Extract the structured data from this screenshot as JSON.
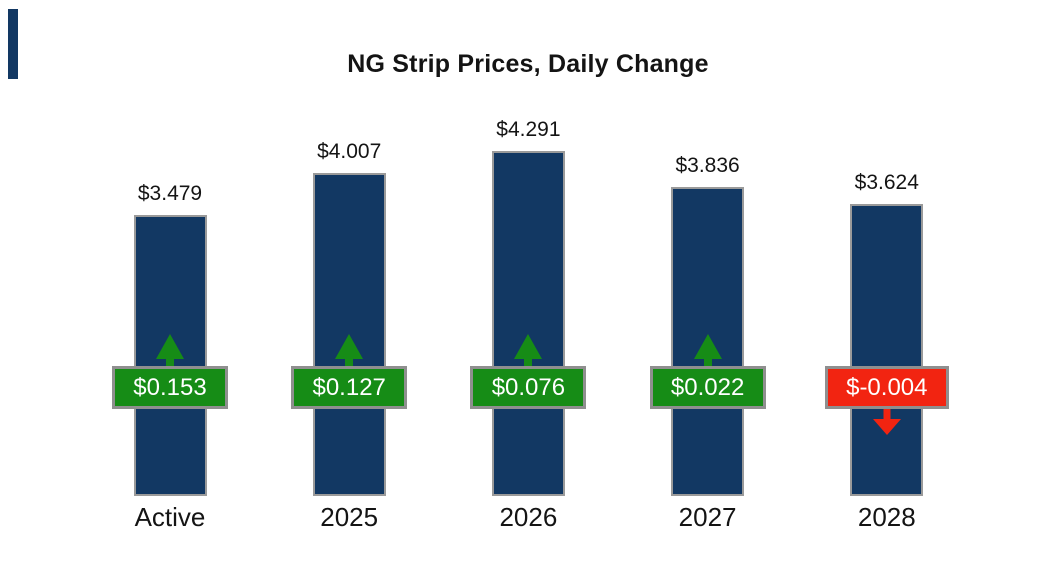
{
  "title": "NG Strip Prices, Daily Change",
  "colors": {
    "bar_fill": "#123863",
    "bar_border": "#9a9a9a",
    "positive": "#168c16",
    "negative": "#f22411",
    "badge_border": "#8f8f8f",
    "badge_text": "#ffffff",
    "label_text": "#141414"
  },
  "bars": [
    {
      "category": "Active",
      "value": 3.479,
      "value_label": "$3.479",
      "change": 0.153,
      "change_label": "$0.153",
      "direction": "up"
    },
    {
      "category": "2025",
      "value": 4.007,
      "value_label": "$4.007",
      "change": 0.127,
      "change_label": "$0.127",
      "direction": "up"
    },
    {
      "category": "2026",
      "value": 4.291,
      "value_label": "$4.291",
      "change": 0.076,
      "change_label": "$0.076",
      "direction": "up"
    },
    {
      "category": "2027",
      "value": 3.836,
      "value_label": "$3.836",
      "change": 0.022,
      "change_label": "$0.022",
      "direction": "up"
    },
    {
      "category": "2028",
      "value": 3.624,
      "value_label": "$3.624",
      "change": -0.004,
      "change_label": "$-0.004",
      "direction": "down"
    }
  ],
  "chart_data": {
    "type": "bar",
    "title": "NG Strip Prices, Daily Change",
    "categories": [
      "Active",
      "2025",
      "2026",
      "2027",
      "2028"
    ],
    "series": [
      {
        "name": "strip_price_usd",
        "values": [
          3.479,
          4.007,
          4.291,
          3.836,
          3.624
        ]
      },
      {
        "name": "daily_change_usd",
        "values": [
          0.153,
          0.127,
          0.076,
          0.022,
          -0.004
        ]
      }
    ],
    "xlabel": "",
    "ylabel": "",
    "ylim": [
      0,
      4.8
    ],
    "grid": false,
    "legend": "none",
    "axis_lines": "none",
    "bar_color": "#123863",
    "positive_change_color": "#168c16",
    "negative_change_color": "#f22411"
  }
}
